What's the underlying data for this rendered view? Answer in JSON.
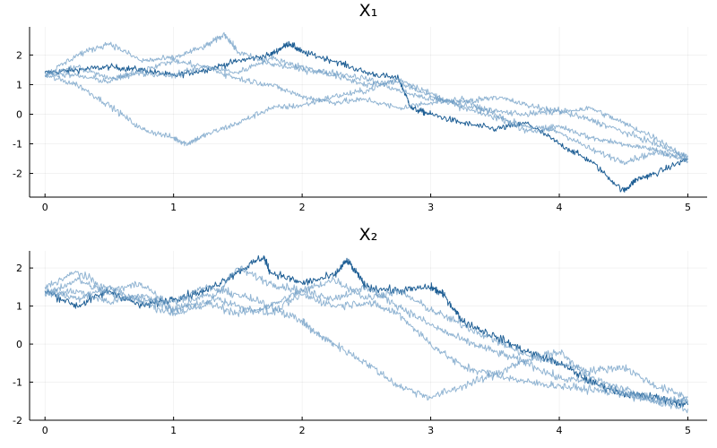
{
  "chart_data": [
    {
      "type": "line",
      "title": "X₁",
      "xlabel": "",
      "ylabel": "",
      "xlim": [
        -0.12,
        5.15
      ],
      "ylim": [
        -2.8,
        2.95
      ],
      "xticks": [
        0,
        1,
        2,
        3,
        4,
        5
      ],
      "yticks": [
        2,
        1,
        0,
        -1,
        -2
      ],
      "grid": true,
      "legend": "none",
      "series": [
        {
          "color": "#1f5f95",
          "opacity": 1.0,
          "x": [
            0,
            0.25,
            0.5,
            0.75,
            1,
            1.25,
            1.5,
            1.75,
            1.9,
            2,
            2.25,
            2.5,
            2.75,
            2.85,
            3,
            3.25,
            3.5,
            3.75,
            4,
            4.25,
            4.5,
            4.6,
            4.75,
            5
          ],
          "y": [
            1.4,
            1.5,
            1.6,
            1.5,
            1.3,
            1.5,
            1.8,
            2.0,
            2.4,
            2.1,
            1.8,
            1.4,
            1.2,
            0.2,
            0.0,
            -0.3,
            -0.5,
            -0.3,
            -1.0,
            -1.6,
            -2.6,
            -2.2,
            -2.0,
            -1.5
          ]
        },
        {
          "color": "#6e9cc4",
          "opacity": 0.75,
          "x": [
            0,
            0.25,
            0.5,
            0.75,
            1,
            1.1,
            1.25,
            1.5,
            1.75,
            2,
            2.25,
            2.5,
            2.75,
            3,
            3.25,
            3.5,
            3.75,
            4,
            4.25,
            4.5,
            4.75,
            5
          ],
          "y": [
            1.3,
            1.0,
            0.3,
            -0.5,
            -0.8,
            -1.0,
            -0.7,
            -0.3,
            0.2,
            0.3,
            0.6,
            0.8,
            1.2,
            0.7,
            0.2,
            -0.1,
            -0.4,
            -0.6,
            -1.2,
            -1.6,
            -1.3,
            -1.4
          ]
        },
        {
          "color": "#6e9cc4",
          "opacity": 0.75,
          "x": [
            0,
            0.25,
            0.5,
            0.75,
            1,
            1.25,
            1.4,
            1.5,
            1.75,
            2,
            2.25,
            2.5,
            2.75,
            3,
            3.25,
            3.5,
            3.75,
            4,
            4.25,
            4.5,
            4.75,
            5
          ],
          "y": [
            1.3,
            2.0,
            2.4,
            1.8,
            1.9,
            2.3,
            2.7,
            2.1,
            1.7,
            1.5,
            1.4,
            1.2,
            0.8,
            0.5,
            0.4,
            0.6,
            0.3,
            0.1,
            0.2,
            -0.3,
            -0.8,
            -1.5
          ]
        },
        {
          "color": "#6e9cc4",
          "opacity": 0.75,
          "x": [
            0,
            0.25,
            0.5,
            0.75,
            1,
            1.25,
            1.5,
            1.75,
            2,
            2.25,
            2.5,
            2.75,
            3,
            3.25,
            3.5,
            3.75,
            4,
            4.25,
            4.5,
            4.75,
            5
          ],
          "y": [
            1.4,
            1.3,
            1.1,
            1.5,
            1.8,
            1.6,
            1.4,
            1.9,
            1.6,
            1.3,
            1.0,
            1.1,
            0.6,
            0.3,
            0.1,
            0.0,
            0.1,
            -0.2,
            -0.6,
            -1.0,
            -1.5
          ]
        },
        {
          "color": "#6e9cc4",
          "opacity": 0.75,
          "x": [
            0,
            0.25,
            0.5,
            0.75,
            1,
            1.25,
            1.5,
            1.75,
            2,
            2.25,
            2.5,
            2.75,
            3,
            3.25,
            3.5,
            3.75,
            4,
            4.25,
            4.5,
            4.75,
            5
          ],
          "y": [
            1.3,
            1.6,
            1.2,
            1.4,
            1.3,
            1.6,
            1.2,
            1.0,
            0.6,
            0.4,
            0.5,
            0.2,
            0.4,
            0.5,
            0.0,
            -0.6,
            -0.4,
            -0.8,
            -1.0,
            -1.2,
            -1.6
          ]
        }
      ]
    },
    {
      "type": "line",
      "title": "X₂",
      "xlabel": "",
      "ylabel": "",
      "xlim": [
        -0.12,
        5.15
      ],
      "ylim": [
        -2.0,
        2.45
      ],
      "xticks": [
        0,
        1,
        2,
        3,
        4,
        5
      ],
      "yticks": [
        2,
        1,
        0,
        -1,
        -2
      ],
      "grid": true,
      "legend": "none",
      "series": [
        {
          "color": "#1f5f95",
          "opacity": 1.0,
          "x": [
            0,
            0.25,
            0.5,
            0.75,
            1,
            1.25,
            1.5,
            1.7,
            1.75,
            2,
            2.25,
            2.35,
            2.5,
            2.75,
            3,
            3.1,
            3.25,
            3.5,
            3.75,
            4,
            4.25,
            4.5,
            4.75,
            5
          ],
          "y": [
            1.4,
            1.0,
            1.4,
            1.0,
            1.2,
            1.4,
            1.9,
            2.3,
            1.9,
            1.6,
            1.8,
            2.2,
            1.5,
            1.4,
            1.5,
            1.3,
            0.6,
            0.2,
            -0.2,
            -0.5,
            -1.0,
            -1.3,
            -1.4,
            -1.6
          ]
        },
        {
          "color": "#6e9cc4",
          "opacity": 0.75,
          "x": [
            0,
            0.25,
            0.5,
            0.75,
            1,
            1.25,
            1.5,
            1.75,
            2,
            2.1,
            2.25,
            2.5,
            2.75,
            3,
            3.25,
            3.5,
            3.75,
            4,
            4.25,
            4.5,
            4.75,
            5
          ],
          "y": [
            1.3,
            1.7,
            1.3,
            1.2,
            1.1,
            1.5,
            1.3,
            1.0,
            0.6,
            0.3,
            0.0,
            -0.5,
            -1.1,
            -1.4,
            -1.1,
            -0.8,
            -1.0,
            -1.1,
            -1.2,
            -1.3,
            -1.5,
            -1.5
          ]
        },
        {
          "color": "#6e9cc4",
          "opacity": 0.75,
          "x": [
            0,
            0.25,
            0.5,
            0.75,
            1,
            1.25,
            1.5,
            1.75,
            2,
            2.25,
            2.5,
            2.75,
            3,
            3.25,
            3.5,
            3.75,
            4,
            4.25,
            4.5,
            4.75,
            5
          ],
          "y": [
            1.5,
            1.9,
            1.4,
            1.6,
            0.9,
            1.3,
            1.0,
            0.8,
            1.3,
            1.0,
            1.1,
            0.8,
            0.0,
            -0.6,
            -0.8,
            -0.4,
            -0.2,
            -0.9,
            -1.2,
            -1.4,
            -1.5
          ]
        },
        {
          "color": "#6e9cc4",
          "opacity": 0.75,
          "x": [
            0,
            0.25,
            0.5,
            0.75,
            1,
            1.25,
            1.5,
            1.75,
            2,
            2.25,
            2.5,
            2.75,
            3,
            3.25,
            3.5,
            3.75,
            4,
            4.25,
            4.5,
            4.75,
            5
          ],
          "y": [
            1.4,
            1.2,
            1.5,
            1.1,
            0.8,
            1.0,
            2.0,
            1.6,
            1.4,
            1.2,
            1.5,
            1.0,
            0.5,
            0.1,
            -0.2,
            -0.5,
            -0.9,
            -1.0,
            -1.3,
            -1.5,
            -1.7
          ]
        },
        {
          "color": "#6e9cc4",
          "opacity": 0.75,
          "x": [
            0,
            0.25,
            0.5,
            0.75,
            1,
            1.25,
            1.5,
            1.75,
            2,
            2.25,
            2.5,
            2.75,
            3,
            3.25,
            3.5,
            3.75,
            4,
            4.25,
            4.5,
            4.75,
            5
          ],
          "y": [
            1.3,
            1.4,
            1.1,
            1.3,
            0.9,
            1.1,
            0.8,
            1.0,
            1.4,
            1.7,
            1.2,
            1.4,
            0.9,
            0.5,
            0.1,
            -0.3,
            -0.5,
            -0.7,
            -0.6,
            -1.1,
            -1.4
          ]
        }
      ]
    }
  ]
}
